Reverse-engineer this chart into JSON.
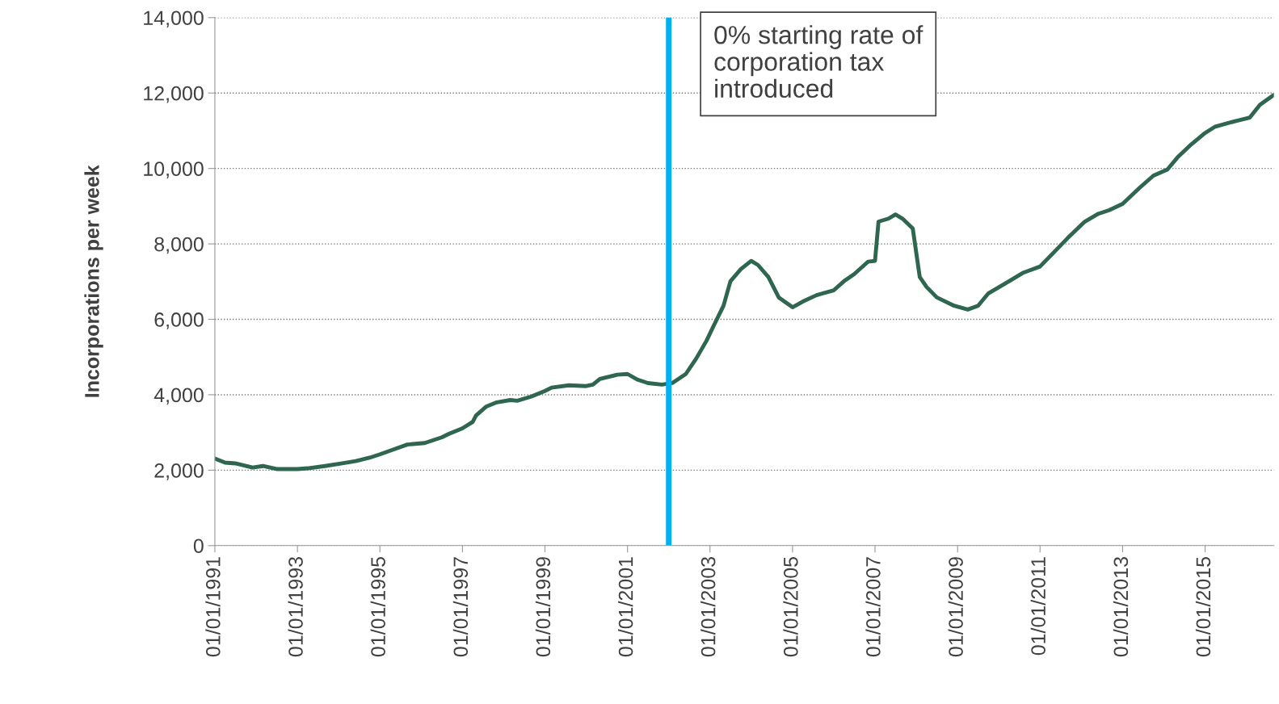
{
  "chart_data": {
    "type": "line",
    "ylabel": "Incorporations per week",
    "x": [
      "1991-01",
      "1991-04",
      "1991-07",
      "1991-12",
      "1992-03",
      "1992-07",
      "1993-01",
      "1993-04",
      "1993-09",
      "1994-02",
      "1994-06",
      "1994-10",
      "1995-01",
      "1995-05",
      "1995-09",
      "1996-02",
      "1996-07",
      "1996-09",
      "1997-01",
      "1997-04",
      "1997-05",
      "1997-08",
      "1997-11",
      "1998-03",
      "1998-05",
      "1998-09",
      "1999-01",
      "1999-03",
      "1999-08",
      "2000-01",
      "2000-03",
      "2000-05",
      "2000-10",
      "2001-01",
      "2001-04",
      "2001-07",
      "2001-11",
      "2002-02",
      "2002-06",
      "2002-09",
      "2002-12",
      "2003-02",
      "2003-05",
      "2003-07",
      "2003-10",
      "2004-01",
      "2004-03",
      "2004-06",
      "2004-09",
      "2005-01",
      "2005-04",
      "2005-08",
      "2006-01",
      "2006-04",
      "2006-07",
      "2006-11",
      "2007-01",
      "2007-02",
      "2007-05",
      "2007-07",
      "2007-09",
      "2007-12",
      "2008-02",
      "2008-04",
      "2008-07",
      "2008-12",
      "2009-04",
      "2009-07",
      "2009-10",
      "2010-04",
      "2010-08",
      "2011-01",
      "2011-05",
      "2011-09",
      "2012-02",
      "2012-06",
      "2012-09",
      "2013-01",
      "2013-06",
      "2013-10",
      "2014-02",
      "2014-05",
      "2014-09",
      "2015-01",
      "2015-04",
      "2015-10",
      "2016-02",
      "2016-05",
      "2016-09"
    ],
    "series": [
      {
        "color": "#2e6650",
        "values": [
          2310,
          2200,
          2180,
          2070,
          2110,
          2030,
          2030,
          2050,
          2110,
          2180,
          2240,
          2330,
          2420,
          2550,
          2680,
          2720,
          2870,
          2960,
          3110,
          3280,
          3450,
          3690,
          3800,
          3860,
          3840,
          3950,
          4100,
          4190,
          4250,
          4230,
          4270,
          4420,
          4530,
          4550,
          4400,
          4310,
          4270,
          4310,
          4550,
          4960,
          5430,
          5820,
          6360,
          7010,
          7330,
          7550,
          7440,
          7120,
          6580,
          6320,
          6470,
          6640,
          6770,
          7010,
          7200,
          7530,
          7550,
          8590,
          8670,
          8780,
          8670,
          8410,
          7120,
          6860,
          6580,
          6360,
          6260,
          6360,
          6690,
          7010,
          7230,
          7400,
          7770,
          8150,
          8590,
          8800,
          8890,
          9060,
          9490,
          9810,
          9970,
          10290,
          10640,
          10940,
          11110,
          11260,
          11350,
          11690,
          11950
        ]
      }
    ],
    "xlim": [
      "1991-01-01",
      "2016-09-01"
    ],
    "xticks": [
      {
        "value": "1991-01-01",
        "label": "01/01/1991"
      },
      {
        "value": "1993-01-01",
        "label": "01/01/1993"
      },
      {
        "value": "1995-01-01",
        "label": "01/01/1995"
      },
      {
        "value": "1997-01-01",
        "label": "01/01/1997"
      },
      {
        "value": "1999-01-01",
        "label": "01/01/1999"
      },
      {
        "value": "2001-01-01",
        "label": "01/01/2001"
      },
      {
        "value": "2003-01-01",
        "label": "01/01/2003"
      },
      {
        "value": "2005-01-01",
        "label": "01/01/2005"
      },
      {
        "value": "2007-01-01",
        "label": "01/01/2007"
      },
      {
        "value": "2009-01-01",
        "label": "01/01/2009"
      },
      {
        "value": "2011-01-01",
        "label": "01/01/2011"
      },
      {
        "value": "2013-01-01",
        "label": "01/01/2013"
      },
      {
        "value": "2015-01-01",
        "label": "01/01/2015"
      }
    ],
    "ylim": [
      0,
      14000
    ],
    "yticks": [
      {
        "value": 0,
        "label": "0"
      },
      {
        "value": 2000,
        "label": "2,000"
      },
      {
        "value": 4000,
        "label": "4,000"
      },
      {
        "value": 6000,
        "label": "6,000"
      },
      {
        "value": 8000,
        "label": "8,000"
      },
      {
        "value": 10000,
        "label": "10,000"
      },
      {
        "value": 12000,
        "label": "12,000"
      },
      {
        "value": 14000,
        "label": "14,000"
      }
    ],
    "grid": "y",
    "legend": false,
    "ref_lines": [
      {
        "axis": "x",
        "value": "2002-01",
        "label": "0% starting rate of\ncorporation tax\nintroduced",
        "color": "#00b0f0"
      }
    ]
  }
}
